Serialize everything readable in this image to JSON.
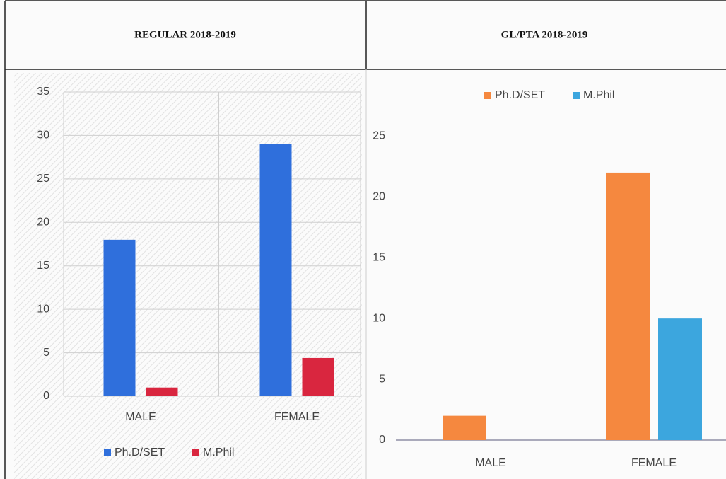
{
  "chart_data": [
    {
      "type": "bar",
      "title": "REGULAR 2018-2019",
      "categories": [
        "MALE",
        "FEMALE"
      ],
      "series": [
        {
          "name": "Ph.D/SET",
          "color": "#2f6fdc",
          "values": [
            18,
            29
          ]
        },
        {
          "name": "M.Phil",
          "color": "#d9263f",
          "values": [
            1,
            4.4
          ]
        }
      ],
      "ylim": [
        0,
        35
      ],
      "yticks": [
        0,
        5,
        10,
        15,
        20,
        25,
        30,
        35
      ],
      "grid": true,
      "legend": "bottom"
    },
    {
      "type": "bar",
      "title": "GL/PTA 2018-2019",
      "categories": [
        "MALE",
        "FEMALE"
      ],
      "series": [
        {
          "name": "Ph.D/SET",
          "color": "#f5883f",
          "values": [
            2,
            22
          ]
        },
        {
          "name": "M.Phil",
          "color": "#3ca6de",
          "values": [
            0,
            10
          ]
        }
      ],
      "ylim": [
        0,
        27
      ],
      "yticks": [
        0,
        5,
        10,
        15,
        20,
        25
      ],
      "grid": false,
      "legend": "top"
    }
  ]
}
